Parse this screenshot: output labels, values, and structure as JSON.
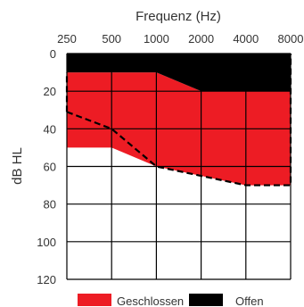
{
  "chart_data": {
    "type": "area",
    "xlabel": "Frequenz (Hz)",
    "ylabel": "dB HL",
    "x_scale": "log",
    "x_ticks": [
      "250",
      "500",
      "1000",
      "2000",
      "4000",
      "8000"
    ],
    "y_ticks": [
      "0",
      "20",
      "40",
      "60",
      "80",
      "100",
      "120"
    ],
    "ylim": [
      0,
      120
    ],
    "y_inverted": true,
    "grid": true,
    "legend_position": "bottom",
    "series": [
      {
        "name": "Geschlossen",
        "color": "#ED1C24",
        "x": [
          250,
          500,
          1000,
          2000,
          4000,
          8000
        ],
        "upper_db": [
          10,
          10,
          10,
          20,
          20,
          20
        ],
        "lower_db": [
          50,
          50,
          60,
          65,
          70,
          70
        ]
      },
      {
        "name": "Offen",
        "color": "#000000",
        "x": [
          250,
          500,
          1000,
          2000,
          4000,
          8000
        ],
        "upper_db": [
          0,
          0,
          0,
          0,
          0,
          0
        ],
        "lower_db": [
          10,
          10,
          10,
          20,
          20,
          20
        ],
        "boundary_db": [
          31,
          40,
          60,
          65,
          70,
          70
        ],
        "boundary_style": "dashed"
      }
    ]
  }
}
